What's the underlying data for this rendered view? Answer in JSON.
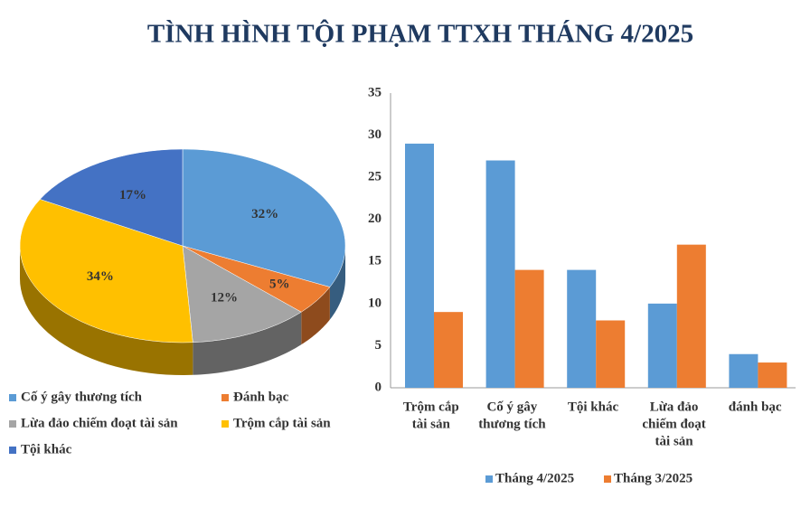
{
  "title": "TÌNH HÌNH TỘI PHẠM TTXH THÁNG 4/2025",
  "chart_data": [
    {
      "type": "pie3d",
      "categories": [
        "Cố ý gây thương tích",
        "Đánh bạc",
        "Lừa đảo chiếm đoạt tài sản",
        "Trộm cắp tài sản",
        "Tội khác"
      ],
      "values": [
        32,
        5,
        12,
        34,
        17
      ],
      "value_labels": [
        "32%",
        "5%",
        "12%",
        "34%",
        "17%"
      ],
      "colors": [
        "#5b9bd5",
        "#ed7d31",
        "#a5a5a5",
        "#ffc000",
        "#4472c4"
      ],
      "legend": "bottom"
    },
    {
      "type": "bar",
      "categories": [
        [
          "Trộm cắp",
          "tài sản"
        ],
        [
          "Cố ý gây",
          "thương tích"
        ],
        [
          "Tội khác"
        ],
        [
          "Lừa đảo",
          "chiếm đoạt",
          "tài sản"
        ],
        [
          "đánh bạc"
        ]
      ],
      "series": [
        {
          "name": "Tháng 4/2025",
          "color": "#5b9bd5",
          "values": [
            29,
            27,
            14,
            10,
            4
          ]
        },
        {
          "name": "Tháng 3/2025",
          "color": "#ed7d31",
          "values": [
            9,
            14,
            8,
            17,
            3
          ]
        }
      ],
      "ylim": [
        0,
        35
      ],
      "yticks": [
        0,
        5,
        10,
        15,
        20,
        25,
        30,
        35
      ],
      "grid": false,
      "legend": "bottom"
    }
  ]
}
